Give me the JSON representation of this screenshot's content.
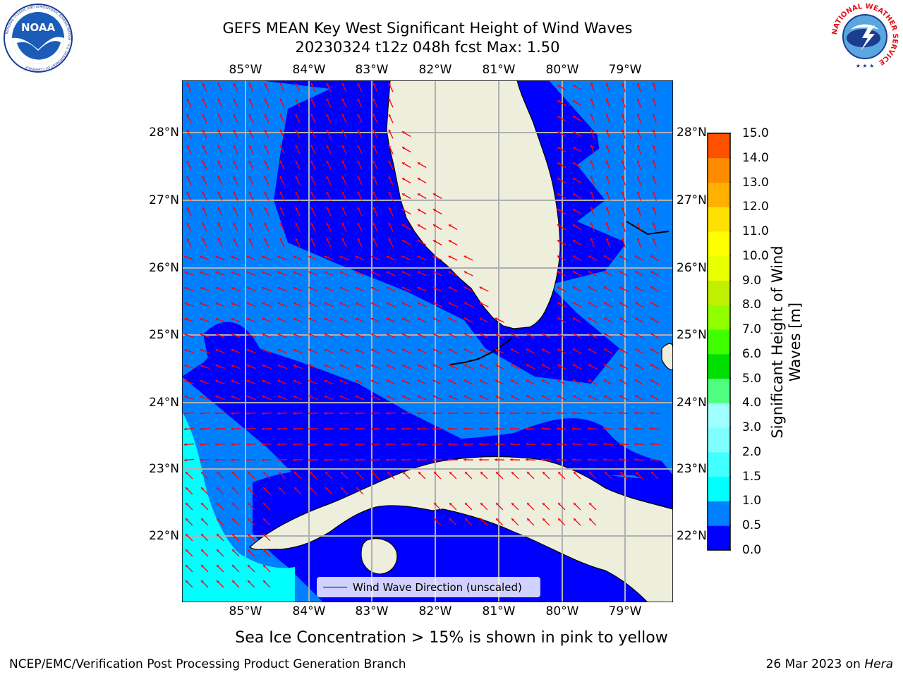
{
  "header": {
    "title_line1": "GEFS MEAN Key West Significant Height of Wind Waves",
    "title_line2": "20230324 t12z 048h fcst   Max: 1.50"
  },
  "map": {
    "lon_ticks": [
      "85°W",
      "84°W",
      "83°W",
      "82°W",
      "81°W",
      "80°W",
      "79°W"
    ],
    "lat_ticks": [
      "28°N",
      "27°N",
      "26°N",
      "25°N",
      "24°N",
      "23°N",
      "22°N"
    ],
    "legend_label": "Wind Wave Direction (unscaled)",
    "colors": {
      "band_0_05": "#0000ff",
      "band_05_1": "#0080ff",
      "band_1_15": "#00ffff",
      "land": "#eeeedd",
      "arrow": "#ff0000",
      "grid": "#b0b0b0"
    }
  },
  "colorbar": {
    "label": "Significant Height of Wind Waves [m]",
    "ticks": [
      "15.0",
      "14.0",
      "13.0",
      "12.0",
      "11.0",
      "10.0",
      "9.0",
      "8.0",
      "7.0",
      "6.0",
      "5.0",
      "4.0",
      "3.0",
      "2.0",
      "1.5",
      "1.0",
      "0.5",
      "0.0"
    ],
    "colors": [
      "#0000ff",
      "#0080ff",
      "#00ffff",
      "#40ffff",
      "#80ffff",
      "#a0ffff",
      "#50ff80",
      "#00e000",
      "#40ff00",
      "#90ff00",
      "#c0f000",
      "#e8ff00",
      "#ffff00",
      "#ffe000",
      "#ffb000",
      "#ff8c00",
      "#ff5000",
      "#ff2000",
      "#ff0000"
    ]
  },
  "subtitle": "Sea Ice Concentration > 15% is shown in pink to yellow",
  "footer": {
    "left": "NCEP/EMC/Verification Post Processing Product Generation Branch",
    "right_date": "26 Mar 2023 on ",
    "right_host": "Hera"
  },
  "logos": {
    "noaa_word": "NOAA",
    "noaa_ring": "NATIONAL OCEANIC AND ATMOSPHERIC ADMINISTRATION · U.S. DEPARTMENT OF COMMERCE",
    "nws_ring": "NATIONAL WEATHER SERVICE"
  }
}
